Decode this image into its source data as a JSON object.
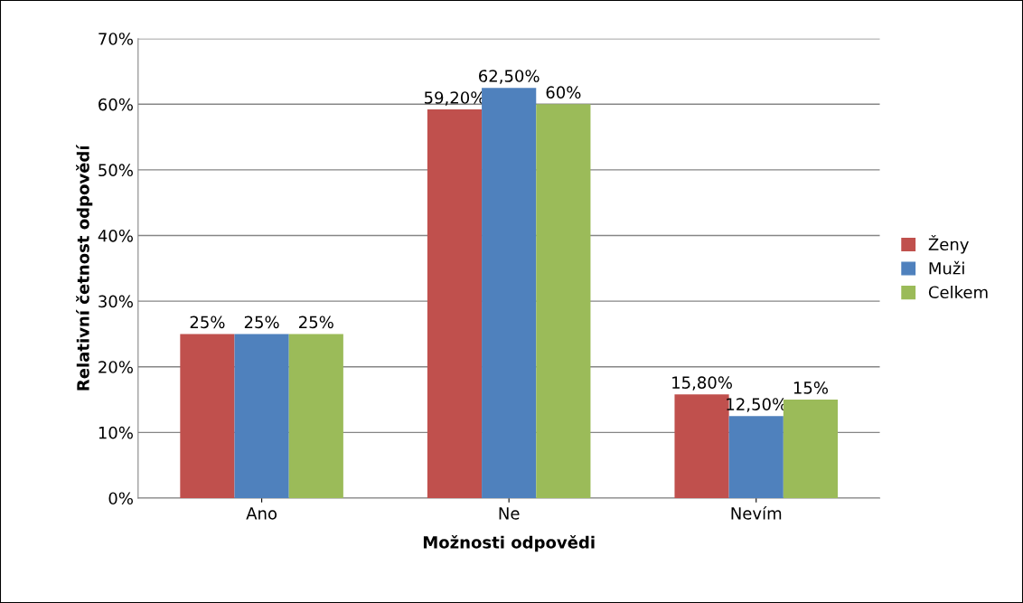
{
  "chart_data": {
    "type": "bar",
    "xlabel": "Možnosti odpovědi",
    "ylabel": "Relativní četnost odpovědí",
    "categories": [
      "Ano",
      "Ne",
      "Nevím"
    ],
    "series": [
      {
        "name": "Ženy",
        "color": "#c0504d",
        "values": [
          25,
          59.2,
          15.8
        ],
        "value_labels": [
          "25%",
          "59,20%",
          "15,80%"
        ]
      },
      {
        "name": "Muži",
        "color": "#4f81bd",
        "values": [
          25,
          62.5,
          12.5
        ],
        "value_labels": [
          "25%",
          "62,50%",
          "12,50%"
        ]
      },
      {
        "name": "Celkem",
        "color": "#9bbb59",
        "values": [
          25,
          60,
          15
        ],
        "value_labels": [
          "25%",
          "60%",
          "15%"
        ]
      }
    ],
    "ylim": [
      0,
      70
    ],
    "yticks": [
      {
        "value": 0,
        "label": "0%"
      },
      {
        "value": 10,
        "label": "10%"
      },
      {
        "value": 20,
        "label": "20%"
      },
      {
        "value": 30,
        "label": "30%"
      },
      {
        "value": 40,
        "label": "40%"
      },
      {
        "value": 50,
        "label": "50%"
      },
      {
        "value": 60,
        "label": "60%"
      },
      {
        "value": 70,
        "label": "70%"
      }
    ],
    "grid": "y",
    "legend": "right"
  }
}
